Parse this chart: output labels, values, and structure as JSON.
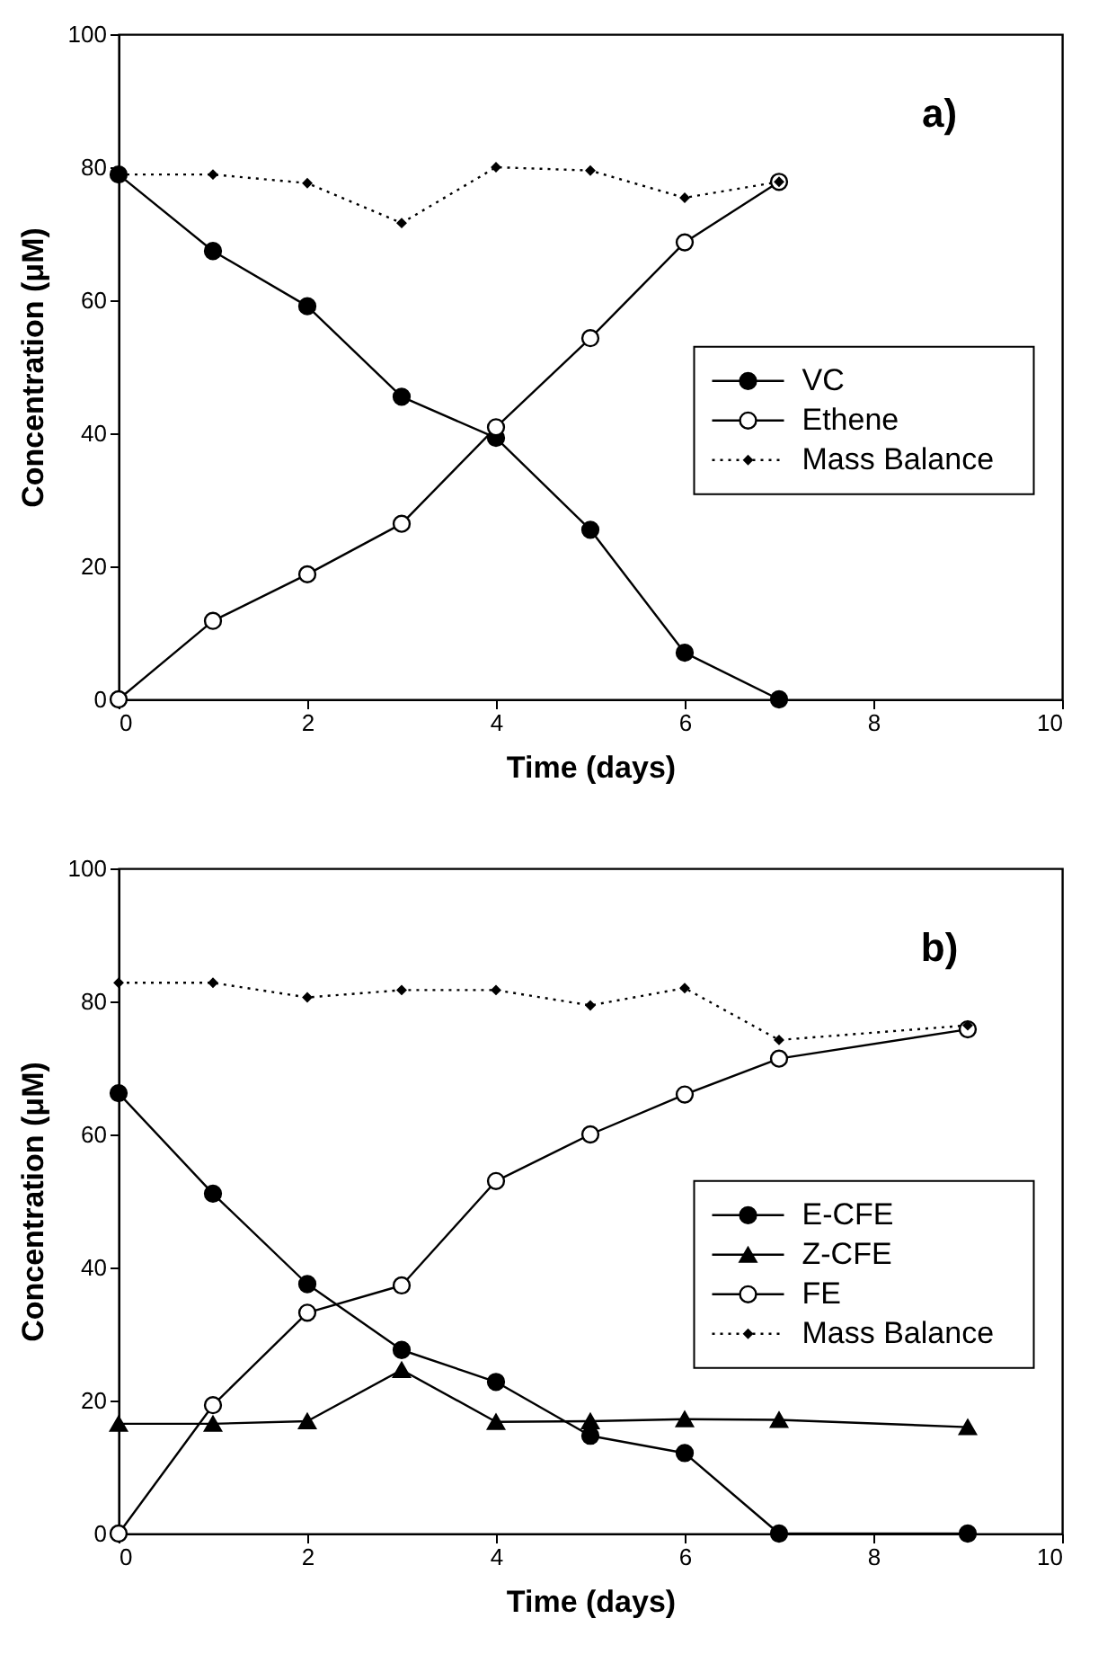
{
  "chart_data": [
    {
      "type": "line",
      "xlabel": "Time (days)",
      "ylabel": "Concentration (μM)",
      "xlim": [
        0,
        10
      ],
      "ylim": [
        0,
        100
      ],
      "xticks": [
        0,
        2,
        4,
        6,
        8,
        10
      ],
      "yticks": [
        0,
        20,
        40,
        60,
        80,
        100
      ],
      "legend": "right",
      "annotations": [
        "a)"
      ],
      "series": [
        {
          "name": "VC",
          "color": "#000000",
          "marker": "circle",
          "line_style": "solid",
          "x": [
            0,
            1,
            2,
            3,
            4,
            5,
            6,
            7
          ],
          "values": [
            78.9,
            67.4,
            59.1,
            45.5,
            39.3,
            25.5,
            7,
            0
          ]
        },
        {
          "name": "Ethene",
          "color": "#ffffff",
          "marker": "circle",
          "line_style": "solid",
          "x": [
            0,
            1,
            2,
            3,
            4,
            5,
            6,
            7
          ],
          "values": [
            0,
            11.8,
            18.8,
            26.4,
            40.9,
            54.3,
            68.7,
            77.8
          ]
        },
        {
          "name": "Mass Balance",
          "color": "#000000",
          "marker": "diamond",
          "line_style": "dotted",
          "x": [
            0,
            1,
            2,
            3,
            4,
            5,
            6,
            7
          ],
          "values": [
            78.9,
            78.9,
            77.6,
            71.6,
            80,
            79.5,
            75.4,
            77.8
          ]
        }
      ]
    },
    {
      "type": "line",
      "xlabel": "Time (days)",
      "ylabel": "Concentration (μM)",
      "xlim": [
        0,
        10
      ],
      "ylim": [
        0,
        100
      ],
      "xticks": [
        0,
        2,
        4,
        6,
        8,
        10
      ],
      "yticks": [
        0,
        20,
        40,
        60,
        80,
        100
      ],
      "legend": "right",
      "annotations": [
        "b)"
      ],
      "series": [
        {
          "name": "E-CFE",
          "color": "#000000",
          "marker": "circle",
          "line_style": "solid",
          "x": [
            0,
            1,
            2,
            3,
            4,
            5,
            6,
            7,
            9
          ],
          "values": [
            66.2,
            51.1,
            37.5,
            27.6,
            22.8,
            14.7,
            12.1,
            0,
            0
          ]
        },
        {
          "name": "Z-CFE",
          "color": "#000000",
          "marker": "triangle",
          "line_style": "solid",
          "x": [
            0,
            1,
            2,
            3,
            4,
            5,
            6,
            7,
            9
          ],
          "values": [
            16.5,
            16.5,
            16.9,
            24.6,
            16.8,
            16.9,
            17.2,
            17.1,
            16
          ]
        },
        {
          "name": "FE",
          "color": "#ffffff",
          "marker": "circle",
          "line_style": "solid",
          "x": [
            0,
            1,
            2,
            3,
            4,
            5,
            6,
            7,
            9
          ],
          "values": [
            0,
            19.3,
            33.2,
            37.3,
            53,
            60,
            66,
            71.4,
            75.8
          ]
        },
        {
          "name": "Mass Balance",
          "color": "#000000",
          "marker": "diamond",
          "line_style": "dotted",
          "x": [
            0,
            1,
            2,
            3,
            4,
            5,
            6,
            7,
            9
          ],
          "values": [
            82.8,
            82.8,
            80.6,
            81.7,
            81.7,
            79.4,
            82,
            74.2,
            76.4
          ]
        }
      ]
    }
  ]
}
